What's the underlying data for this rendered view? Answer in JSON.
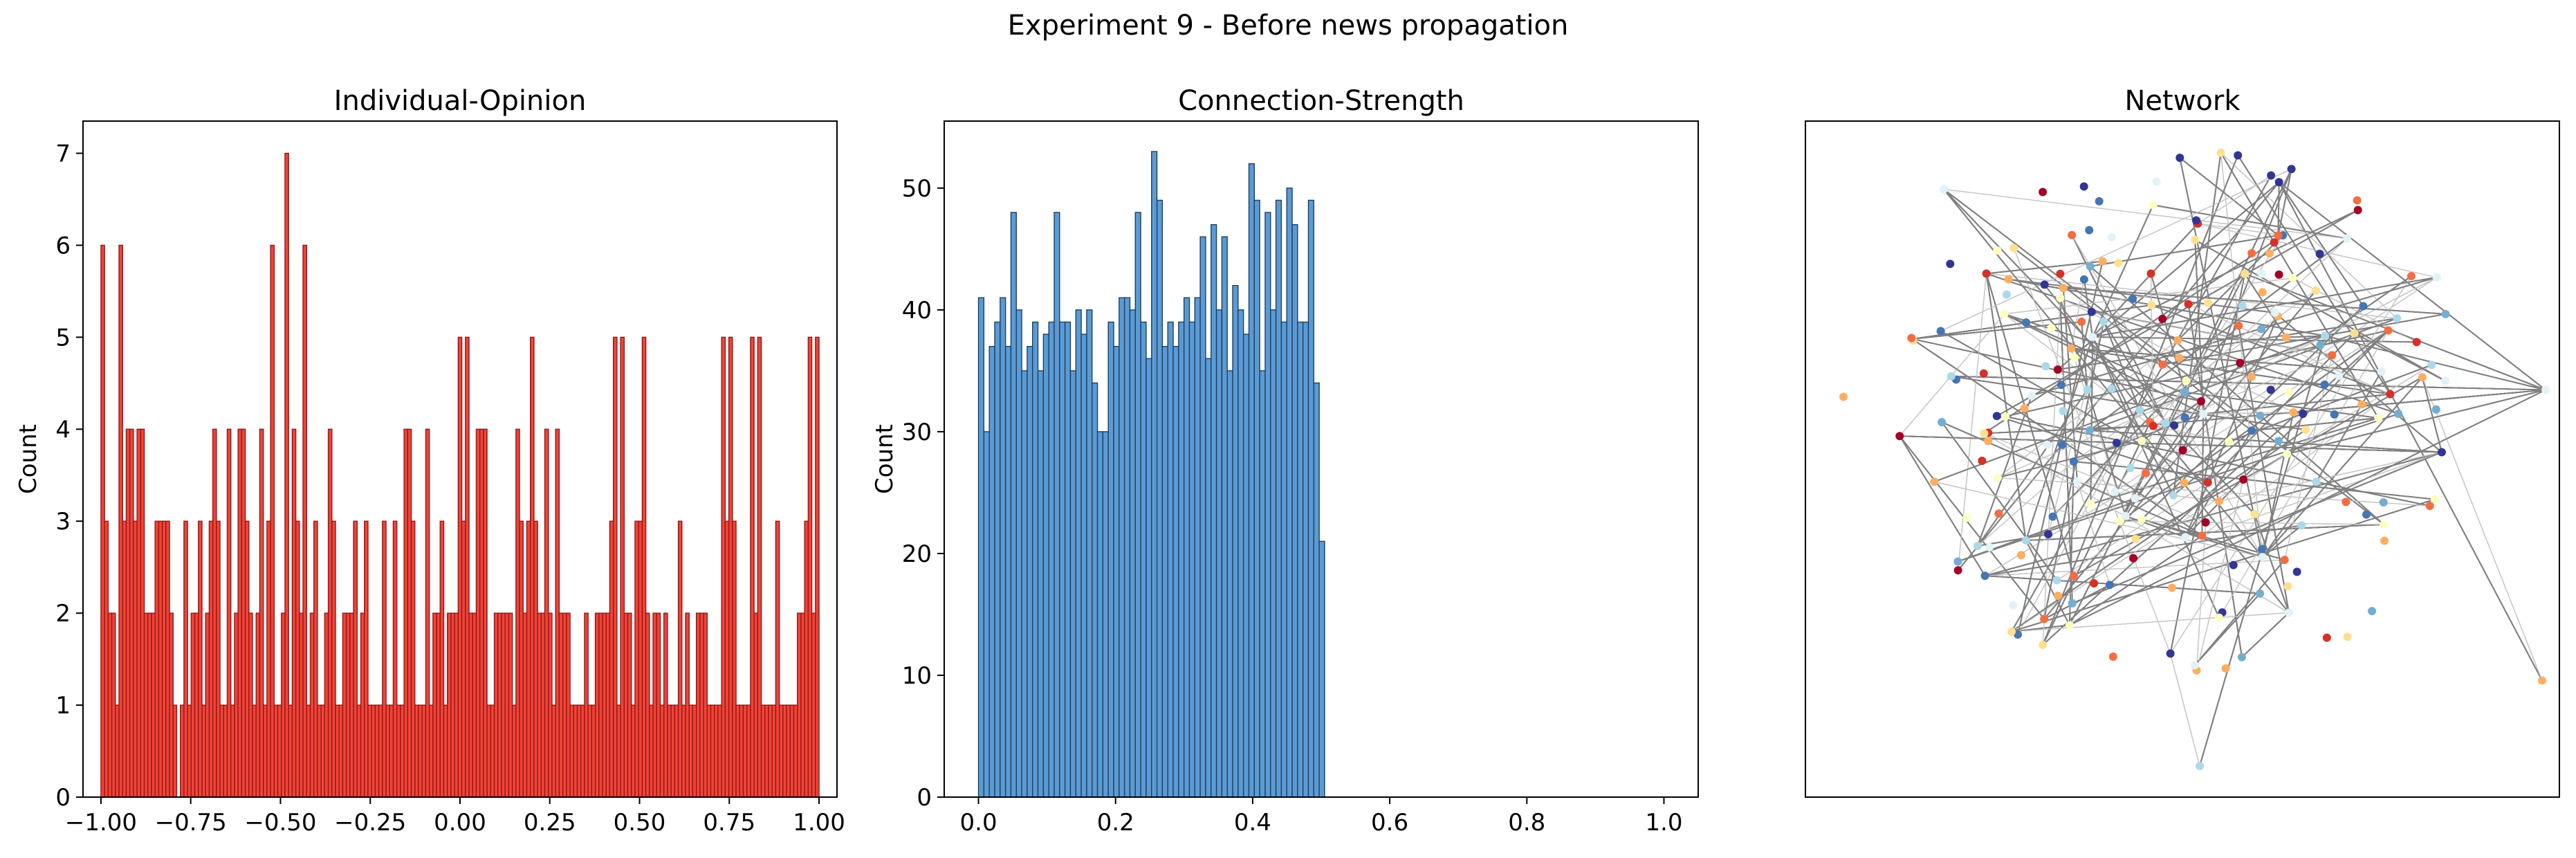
{
  "figure": {
    "suptitle": "Experiment 9 - Before news propagation"
  },
  "chart_data": [
    {
      "type": "bar",
      "title": "Individual-Opinion",
      "xlabel": "",
      "ylabel": "Count",
      "color": "#f44336",
      "edge_color": "#8b1a1a",
      "xlim": [
        -1.05,
        1.05
      ],
      "ylim": [
        0,
        7.35
      ],
      "xticks": [
        -1.0,
        -0.75,
        -0.5,
        -0.25,
        0.0,
        0.25,
        0.5,
        0.75,
        1.0
      ],
      "xtick_labels": [
        "−1.00",
        "−0.75",
        "−0.50",
        "−0.25",
        "0.00",
        "0.25",
        "0.50",
        "0.75",
        "1.00"
      ],
      "yticks": [
        0,
        1,
        2,
        3,
        4,
        5,
        6,
        7
      ],
      "bin_range": [
        -1.0,
        1.0
      ],
      "values": [
        6,
        3,
        2,
        2,
        1,
        6,
        3,
        4,
        4,
        3,
        4,
        4,
        2,
        2,
        2,
        3,
        3,
        3,
        3,
        2,
        1,
        0,
        1,
        3,
        1,
        2,
        2,
        3,
        1,
        2,
        3,
        4,
        3,
        1,
        1,
        4,
        1,
        2,
        4,
        4,
        3,
        2,
        1,
        2,
        4,
        1,
        3,
        6,
        1,
        1,
        2,
        7,
        1,
        4,
        3,
        2,
        6,
        1,
        2,
        3,
        1,
        1,
        2,
        4,
        3,
        1,
        1,
        2,
        2,
        2,
        3,
        1,
        2,
        3,
        1,
        1,
        1,
        1,
        3,
        1,
        1,
        3,
        1,
        1,
        4,
        4,
        3,
        1,
        1,
        1,
        4,
        1,
        2,
        2,
        3,
        1,
        2,
        2,
        2,
        5,
        3,
        5,
        2,
        2,
        4,
        4,
        4,
        1,
        1,
        2,
        2,
        2,
        2,
        2,
        1,
        4,
        3,
        2,
        3,
        5,
        3,
        2,
        2,
        4,
        2,
        1,
        4,
        2,
        2,
        2,
        1,
        1,
        1,
        1,
        2,
        1,
        1,
        2,
        2,
        2,
        2,
        3,
        5,
        1,
        5,
        2,
        2,
        1,
        3,
        3,
        5,
        2,
        1,
        2,
        2,
        1,
        2,
        1,
        1,
        1,
        3,
        1,
        2,
        1,
        1,
        2,
        2,
        2,
        1,
        1,
        1,
        1,
        5,
        3,
        5,
        3,
        1,
        1,
        1,
        1,
        5,
        2,
        5,
        1,
        1,
        1,
        1,
        3,
        1,
        1,
        1,
        1,
        1,
        2,
        2,
        3,
        5,
        2,
        5
      ]
    },
    {
      "type": "bar",
      "title": "Connection-Strength",
      "xlabel": "",
      "ylabel": "Count",
      "color": "#5b9bd5",
      "edge_color": "#1f3f5f",
      "xlim": [
        -0.05,
        1.05
      ],
      "ylim": [
        0,
        55.5
      ],
      "xticks": [
        0.0,
        0.2,
        0.4,
        0.6,
        0.8,
        1.0
      ],
      "xtick_labels": [
        "0.0",
        "0.2",
        "0.4",
        "0.6",
        "0.8",
        "1.0"
      ],
      "yticks": [
        0,
        10,
        20,
        30,
        40,
        50
      ],
      "bin_range": [
        0.0,
        0.505
      ],
      "values": [
        41,
        30,
        37,
        39,
        41,
        37,
        48,
        40,
        35,
        37,
        39,
        35,
        38,
        39,
        48,
        39,
        39,
        35,
        40,
        38,
        40,
        34,
        30,
        30,
        39,
        37,
        41,
        41,
        40,
        48,
        39,
        36,
        53,
        49,
        37,
        39,
        37,
        39,
        41,
        39,
        41,
        46,
        36,
        47,
        40,
        46,
        35,
        42,
        40,
        38,
        52,
        49,
        35,
        48,
        40,
        49,
        39,
        50,
        47,
        39,
        39,
        49,
        34,
        21
      ]
    },
    {
      "type": "network",
      "title": "Network",
      "node_count": 220,
      "edge_color": "#808080",
      "node_colors": [
        "#a50026",
        "#d73027",
        "#f46d43",
        "#fdae61",
        "#fee090",
        "#ffffbf",
        "#e0f3f8",
        "#abd9e9",
        "#74add1",
        "#4575b4",
        "#313695"
      ]
    }
  ]
}
